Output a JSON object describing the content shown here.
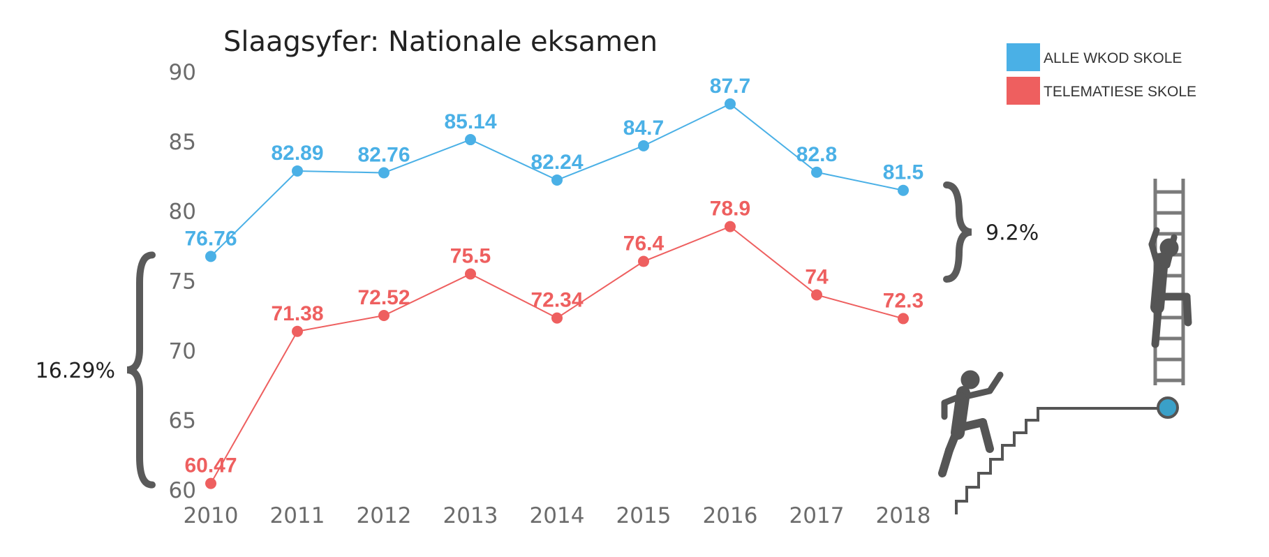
{
  "chart_data": {
    "type": "line",
    "title": "Slaagsyfer: Nationale eksamen",
    "xlabel": "",
    "ylabel": "",
    "categories": [
      "2010",
      "2011",
      "2012",
      "2013",
      "2014",
      "2015",
      "2016",
      "2017",
      "2018"
    ],
    "ylim": [
      60,
      90
    ],
    "yticks": [
      60,
      65,
      70,
      75,
      80,
      85,
      90
    ],
    "grid": false,
    "legend_position": "top-right",
    "series": [
      {
        "name": "ALLE WKOD SKOLE",
        "color": "#4ab0e6",
        "values": [
          76.76,
          82.89,
          82.76,
          85.14,
          82.24,
          84.7,
          87.7,
          82.8,
          81.5
        ],
        "labels": [
          "76.76",
          "82.89",
          "82.76",
          "85.14",
          "82.24",
          "84.7",
          "87.7",
          "82.8",
          "81.5"
        ]
      },
      {
        "name": "TELEMATIESE SKOLE",
        "color": "#ee5f5f",
        "values": [
          60.47,
          71.38,
          72.52,
          75.5,
          72.34,
          76.4,
          78.9,
          74,
          72.3
        ],
        "labels": [
          "60.47",
          "71.38",
          "72.52",
          "75.5",
          "72.34",
          "76.4",
          "78.9",
          "74",
          "72.3"
        ]
      }
    ],
    "annotations": [
      {
        "text": "16.29%",
        "category": "2010",
        "from": 60.47,
        "to": 76.76,
        "side": "left"
      },
      {
        "text": "9.2%",
        "category": "2018",
        "from": 72.3,
        "to": 81.5,
        "side": "right"
      }
    ]
  },
  "decoration": {
    "icons": [
      "person-climbing-stairs-icon",
      "person-climbing-ladder-icon",
      "staircase-icon",
      "ladder-icon"
    ],
    "icon_color": "#555555",
    "marker_color": "#3aa0c8"
  }
}
